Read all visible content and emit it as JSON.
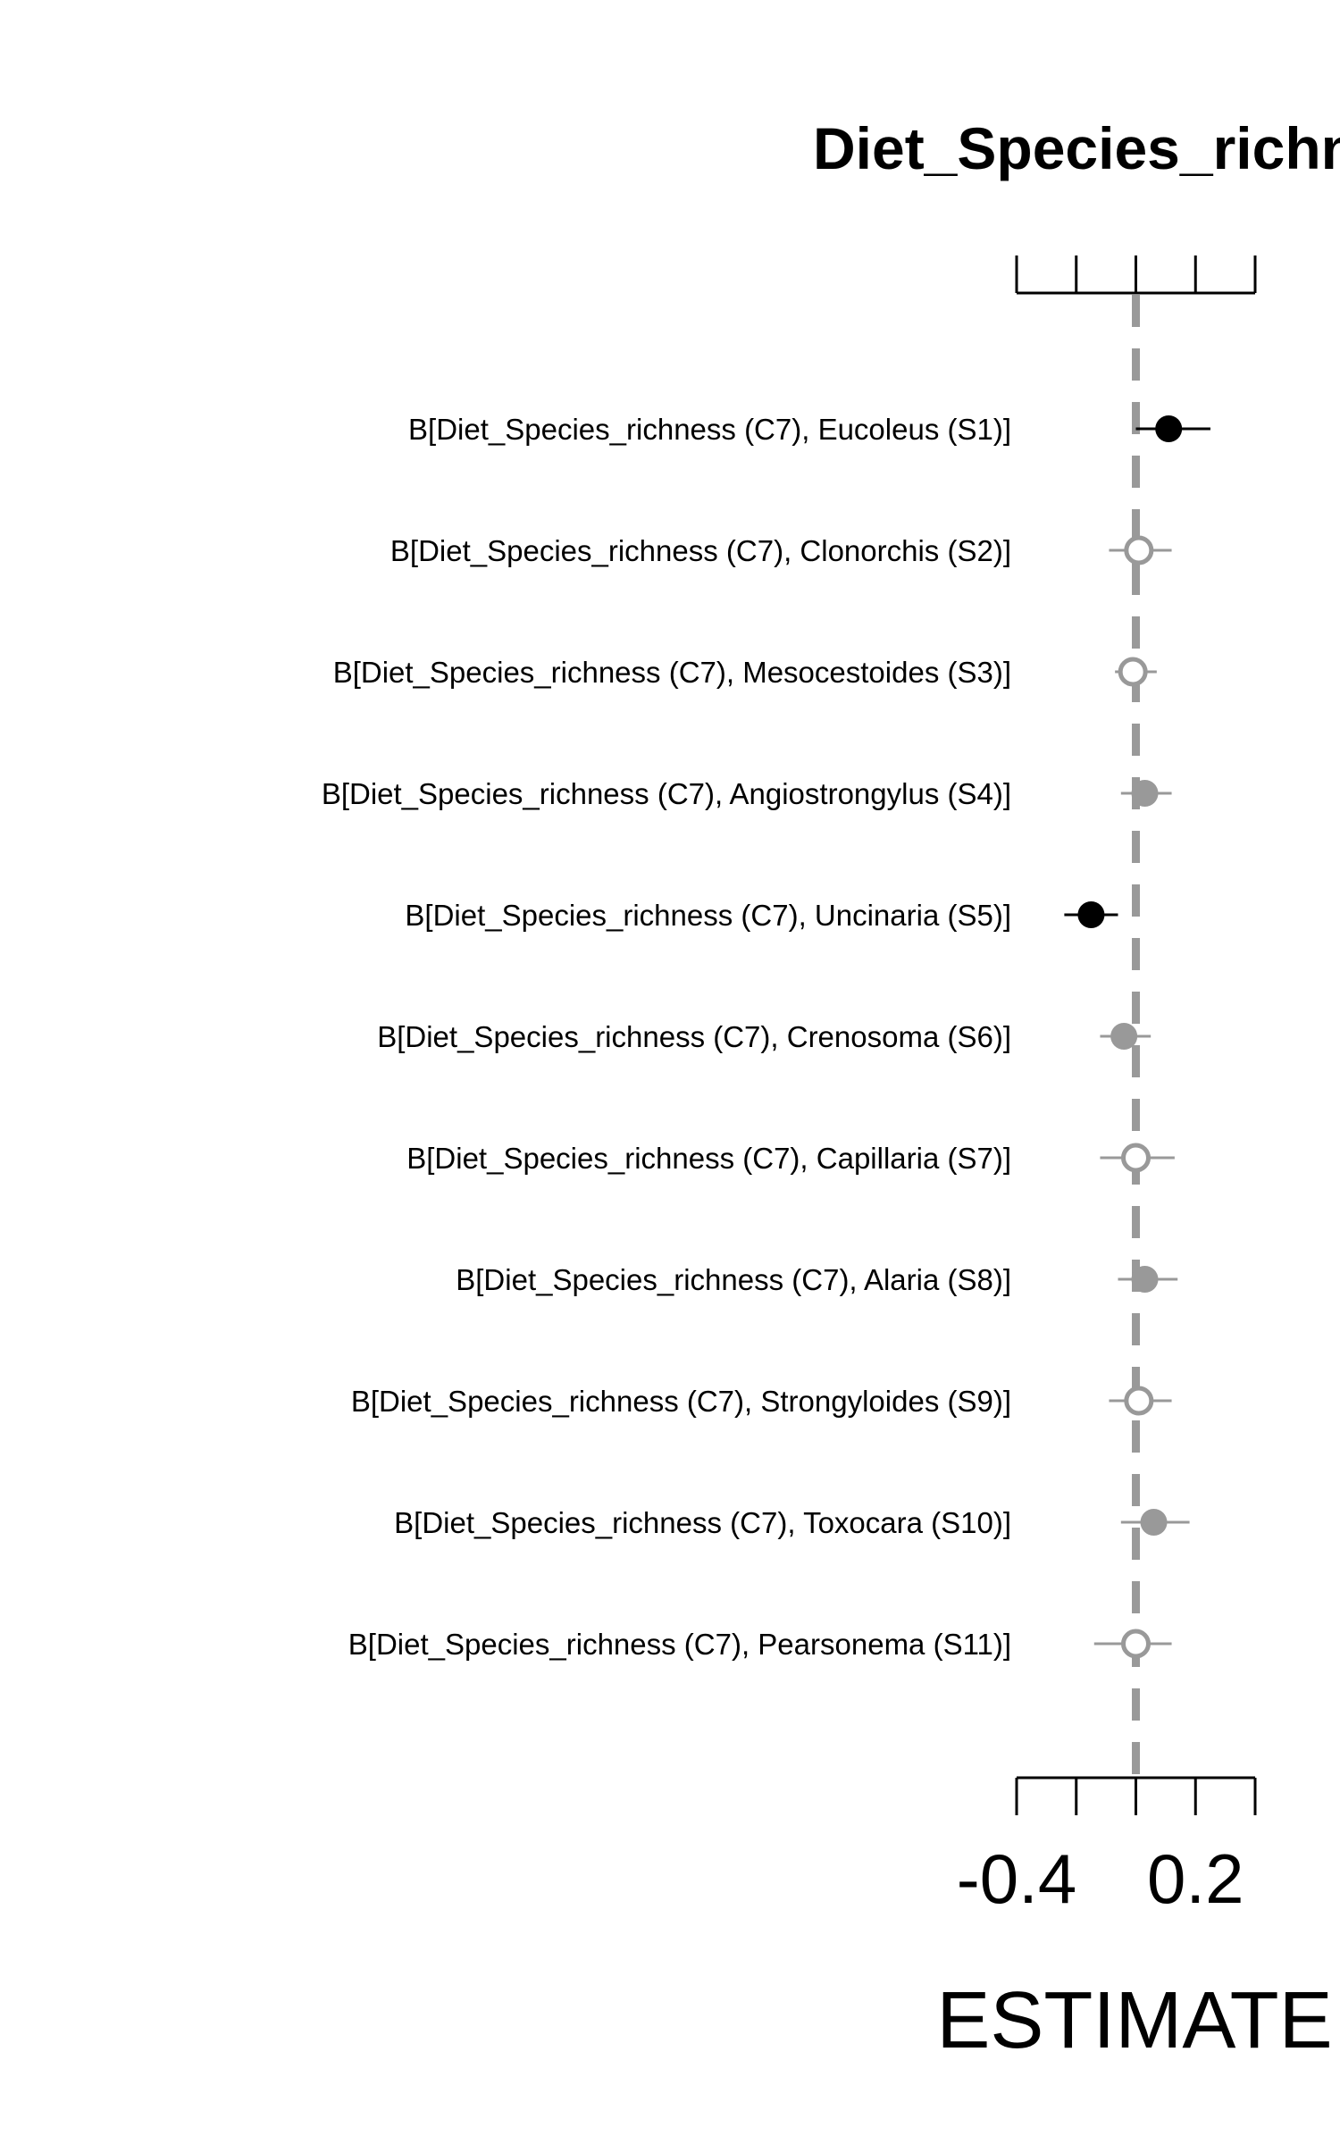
{
  "chart_data": {
    "type": "forest",
    "title": "Diet_Species_richn",
    "xlabel": "ESTIMATE",
    "ylabel": "",
    "xlim": [
      -0.4,
      0.4
    ],
    "x_ticks": [
      -0.4,
      -0.2,
      0.0,
      0.2,
      0.4
    ],
    "x_tick_labels": [
      "-0.4",
      "",
      "",
      "0.2",
      ""
    ],
    "reference_line": 0.0,
    "grid": false,
    "colors": {
      "strong": "#000000",
      "weak": "#999999",
      "reference": "#999999"
    },
    "rows": [
      {
        "label": "B[Diet_Species_richness (C7), Eucoleus (S1)]",
        "estimate": 0.11,
        "lower": 0.0,
        "upper": 0.25,
        "style": "filled-black"
      },
      {
        "label": "B[Diet_Species_richness (C7), Clonorchis (S2)]",
        "estimate": 0.01,
        "lower": -0.09,
        "upper": 0.12,
        "style": "open-gray"
      },
      {
        "label": "B[Diet_Species_richness (C7), Mesocestoides (S3)]",
        "estimate": -0.01,
        "lower": -0.07,
        "upper": 0.07,
        "style": "open-gray"
      },
      {
        "label": "B[Diet_Species_richness (C7), Angiostrongylus (S4)]",
        "estimate": 0.03,
        "lower": -0.05,
        "upper": 0.12,
        "style": "filled-gray"
      },
      {
        "label": "B[Diet_Species_richness (C7), Uncinaria (S5)]",
        "estimate": -0.15,
        "lower": -0.24,
        "upper": -0.06,
        "style": "filled-black"
      },
      {
        "label": "B[Diet_Species_richness (C7), Crenosoma (S6)]",
        "estimate": -0.04,
        "lower": -0.12,
        "upper": 0.05,
        "style": "filled-gray"
      },
      {
        "label": "B[Diet_Species_richness (C7), Capillaria (S7)]",
        "estimate": 0.0,
        "lower": -0.12,
        "upper": 0.13,
        "style": "open-gray"
      },
      {
        "label": "B[Diet_Species_richness (C7), Alaria (S8)]",
        "estimate": 0.03,
        "lower": -0.06,
        "upper": 0.14,
        "style": "filled-gray"
      },
      {
        "label": "B[Diet_Species_richness (C7), Strongyloides (S9)]",
        "estimate": 0.01,
        "lower": -0.09,
        "upper": 0.12,
        "style": "open-gray"
      },
      {
        "label": "B[Diet_Species_richness (C7), Toxocara (S10)]",
        "estimate": 0.06,
        "lower": -0.05,
        "upper": 0.18,
        "style": "filled-gray"
      },
      {
        "label": "B[Diet_Species_richness (C7), Pearsonema (S11)]",
        "estimate": 0.0,
        "lower": -0.14,
        "upper": 0.12,
        "style": "open-gray"
      }
    ]
  }
}
